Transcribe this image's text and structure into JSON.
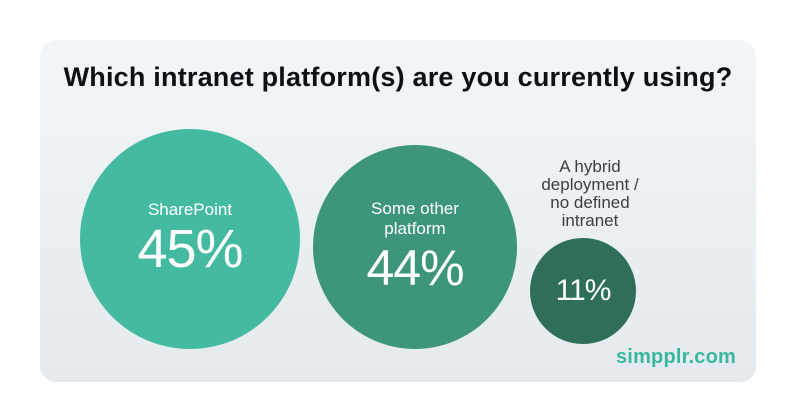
{
  "chart_data": {
    "type": "bubble",
    "title": "Which intranet platform(s) are you currently using?",
    "categories": [
      "SharePoint",
      "Some other platform",
      "A hybrid deployment / no defined intranet"
    ],
    "values": [
      45,
      44,
      11
    ],
    "value_labels": [
      "45%",
      "44%",
      "11%"
    ],
    "unit": "%",
    "colors": [
      "#44bba1",
      "#3d957c",
      "#2f6e58"
    ]
  },
  "bubbles": [
    {
      "label": "SharePoint",
      "value": "45%"
    },
    {
      "label_lines": [
        "Some other",
        "platform"
      ],
      "value": "44%"
    },
    {
      "label_lines": [
        "A hybrid",
        "deployment /",
        "no defined",
        "intranet"
      ],
      "value": "11%"
    }
  ],
  "brand": "simpplr.com"
}
